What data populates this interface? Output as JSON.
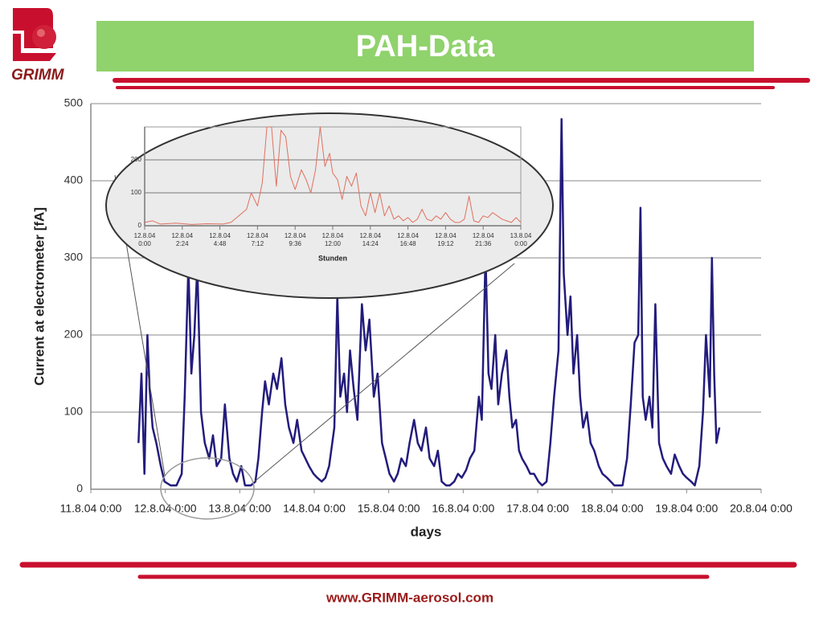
{
  "header": {
    "logo_text": "GRIMM",
    "title": "PAH-Data"
  },
  "footer": {
    "url": "www.GRIMM-aerosol.com"
  },
  "chart_data": [
    {
      "type": "line",
      "color": "#231c7c",
      "grid": true,
      "x_label": "days",
      "y_label": "Current at electrometer [fA]",
      "xlim": [
        0,
        9
      ],
      "ylim": [
        0,
        500
      ],
      "yticks": [
        0,
        100,
        200,
        300,
        400,
        500
      ],
      "xticks": [
        {
          "value": 0,
          "label": "11.8.04 0:00"
        },
        {
          "value": 1,
          "label": "12.8.04 0:00"
        },
        {
          "value": 2,
          "label": "13.8.04 0:00"
        },
        {
          "value": 3,
          "label": "14.8.04 0:00"
        },
        {
          "value": 4,
          "label": "15.8.04 0:00"
        },
        {
          "value": 5,
          "label": "16.8.04 0:00"
        },
        {
          "value": 6,
          "label": "17.8.04 0:00"
        },
        {
          "value": 7,
          "label": "18.8.04 0:00"
        },
        {
          "value": 8,
          "label": "19.8.04 0:00"
        },
        {
          "value": 9,
          "label": "20.8.04 0:00"
        }
      ],
      "x": [
        0.64,
        0.68,
        0.72,
        0.76,
        0.79,
        0.83,
        0.88,
        0.94,
        0.99,
        1.07,
        1.15,
        1.22,
        1.26,
        1.31,
        1.35,
        1.39,
        1.43,
        1.48,
        1.53,
        1.59,
        1.64,
        1.69,
        1.75,
        1.8,
        1.86,
        1.91,
        1.96,
        2.02,
        2.07,
        2.15,
        2.21,
        2.25,
        2.3,
        2.34,
        2.39,
        2.45,
        2.5,
        2.56,
        2.61,
        2.66,
        2.72,
        2.77,
        2.83,
        2.88,
        2.93,
        2.99,
        3.04,
        3.1,
        3.15,
        3.2,
        3.27,
        3.31,
        3.35,
        3.4,
        3.44,
        3.48,
        3.53,
        3.58,
        3.64,
        3.69,
        3.74,
        3.8,
        3.85,
        3.91,
        3.96,
        4.01,
        4.07,
        4.12,
        4.17,
        4.23,
        4.28,
        4.34,
        4.39,
        4.44,
        4.5,
        4.55,
        4.61,
        4.66,
        4.71,
        4.77,
        4.82,
        4.88,
        4.93,
        4.98,
        5.04,
        5.09,
        5.15,
        5.21,
        5.25,
        5.3,
        5.34,
        5.38,
        5.43,
        5.47,
        5.52,
        5.58,
        5.62,
        5.66,
        5.71,
        5.75,
        5.79,
        5.85,
        5.9,
        5.95,
        6.01,
        6.06,
        6.12,
        6.17,
        6.22,
        6.28,
        6.32,
        6.35,
        6.4,
        6.44,
        6.48,
        6.53,
        6.57,
        6.61,
        6.66,
        6.71,
        6.76,
        6.82,
        6.87,
        6.93,
        6.98,
        7.03,
        7.09,
        7.14,
        7.2,
        7.25,
        7.3,
        7.35,
        7.38,
        7.41,
        7.45,
        7.5,
        7.54,
        7.58,
        7.63,
        7.68,
        7.73,
        7.79,
        7.84,
        7.9,
        7.95,
        8.0,
        8.06,
        8.11,
        8.17,
        8.22,
        8.26,
        8.31,
        8.34,
        8.37,
        8.4,
        8.44
      ],
      "values": [
        60,
        150,
        20,
        200,
        130,
        80,
        60,
        30,
        10,
        5,
        5,
        20,
        120,
        290,
        150,
        200,
        290,
        100,
        60,
        40,
        70,
        30,
        40,
        110,
        40,
        20,
        10,
        30,
        5,
        5,
        10,
        40,
        100,
        140,
        110,
        150,
        130,
        170,
        110,
        80,
        60,
        90,
        50,
        40,
        30,
        20,
        15,
        10,
        15,
        30,
        80,
        250,
        120,
        150,
        100,
        180,
        130,
        90,
        240,
        180,
        220,
        120,
        150,
        60,
        40,
        20,
        10,
        20,
        40,
        30,
        60,
        90,
        60,
        50,
        80,
        40,
        30,
        50,
        10,
        5,
        5,
        10,
        20,
        15,
        25,
        40,
        50,
        120,
        90,
        305,
        150,
        130,
        200,
        110,
        150,
        180,
        120,
        80,
        90,
        50,
        40,
        30,
        20,
        20,
        10,
        5,
        10,
        60,
        120,
        180,
        480,
        280,
        200,
        250,
        150,
        200,
        120,
        80,
        100,
        60,
        50,
        30,
        20,
        15,
        10,
        5,
        5,
        5,
        40,
        110,
        190,
        200,
        365,
        120,
        90,
        120,
        80,
        240,
        60,
        40,
        30,
        20,
        45,
        30,
        20,
        15,
        10,
        5,
        30,
        100,
        200,
        120,
        300,
        150,
        60,
        80
      ]
    },
    {
      "type": "line",
      "color": "#e0705e",
      "grid": true,
      "x_label": "Stunden",
      "xlim": [
        0,
        24
      ],
      "ylim": [
        0,
        300
      ],
      "yticks": [
        0,
        100,
        200
      ],
      "xticks": [
        {
          "value": 0,
          "label": "12.8.04 0:00"
        },
        {
          "value": 2.4,
          "label": "12.8.04 2:24"
        },
        {
          "value": 4.8,
          "label": "12.8.04 4:48"
        },
        {
          "value": 7.2,
          "label": "12.8.04 7:12"
        },
        {
          "value": 9.6,
          "label": "12.8.04 9:36"
        },
        {
          "value": 12,
          "label": "12.8.04 12:00"
        },
        {
          "value": 14.4,
          "label": "12.8.04 14:24"
        },
        {
          "value": 16.8,
          "label": "12.8.04 16:48"
        },
        {
          "value": 19.2,
          "label": "12.8.04 19:12"
        },
        {
          "value": 21.6,
          "label": "12.8.04 21:36"
        },
        {
          "value": 24,
          "label": "13.8.04 0:00"
        }
      ],
      "x": [
        0,
        0.5,
        1,
        2,
        3,
        4,
        5,
        5.5,
        6,
        6.5,
        6.8,
        7.2,
        7.5,
        7.8,
        8.1,
        8.4,
        8.7,
        9,
        9.3,
        9.6,
        10,
        10.3,
        10.6,
        10.9,
        11.2,
        11.5,
        11.8,
        12,
        12.3,
        12.6,
        12.9,
        13.2,
        13.5,
        13.8,
        14.1,
        14.4,
        14.7,
        15,
        15.3,
        15.6,
        15.9,
        16.2,
        16.5,
        16.8,
        17.1,
        17.4,
        17.7,
        18,
        18.3,
        18.6,
        18.9,
        19.2,
        19.5,
        19.8,
        20.1,
        20.4,
        20.7,
        21,
        21.3,
        21.6,
        21.9,
        22.2,
        22.5,
        22.8,
        23.1,
        23.4,
        23.7,
        24
      ],
      "values": [
        10,
        15,
        5,
        8,
        4,
        6,
        5,
        10,
        30,
        50,
        100,
        60,
        130,
        300,
        300,
        120,
        290,
        270,
        150,
        110,
        170,
        140,
        100,
        170,
        300,
        180,
        220,
        160,
        140,
        80,
        150,
        120,
        160,
        60,
        30,
        100,
        40,
        100,
        30,
        60,
        20,
        30,
        15,
        25,
        10,
        20,
        50,
        20,
        15,
        30,
        20,
        40,
        20,
        10,
        10,
        20,
        90,
        15,
        10,
        30,
        25,
        40,
        30,
        20,
        15,
        10,
        25,
        10
      ]
    }
  ]
}
